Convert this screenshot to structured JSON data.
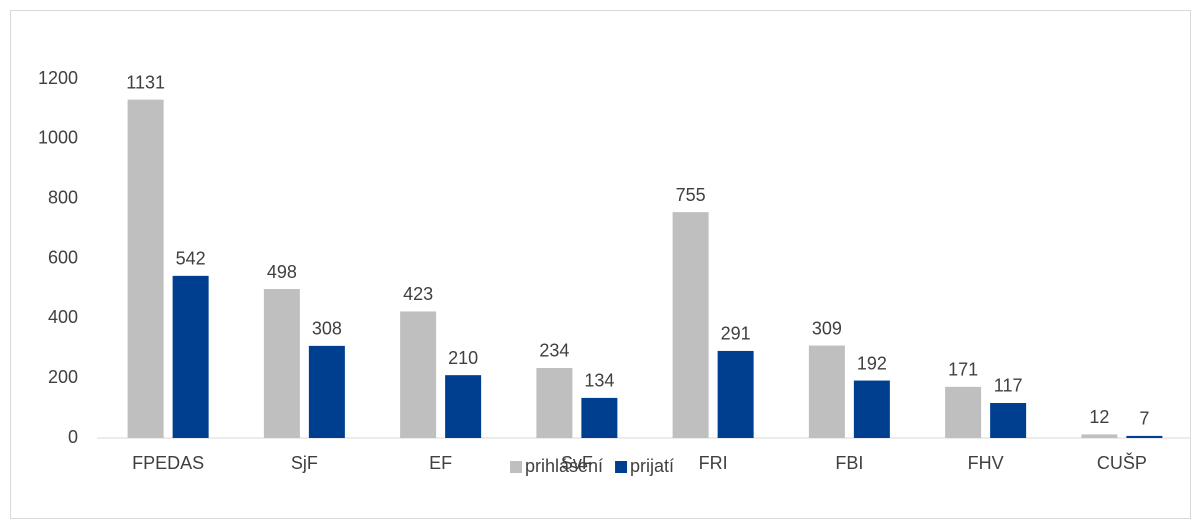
{
  "chart_data": {
    "type": "bar",
    "categories": [
      "FPEDAS",
      "SjF",
      "EF",
      "SvF",
      "FRI",
      "FBI",
      "FHV",
      "CUŠP"
    ],
    "series": [
      {
        "name": "prihlásení",
        "color": "#bfbfbf",
        "values": [
          1131,
          498,
          423,
          234,
          755,
          309,
          171,
          12
        ]
      },
      {
        "name": "prijatí",
        "color": "#003f8f",
        "values": [
          542,
          308,
          210,
          134,
          291,
          192,
          117,
          7
        ]
      }
    ],
    "ylim": [
      0,
      1200
    ],
    "yticks": [
      0,
      200,
      400,
      600,
      800,
      1000,
      1200
    ],
    "grid": false,
    "legend": "bottom"
  }
}
